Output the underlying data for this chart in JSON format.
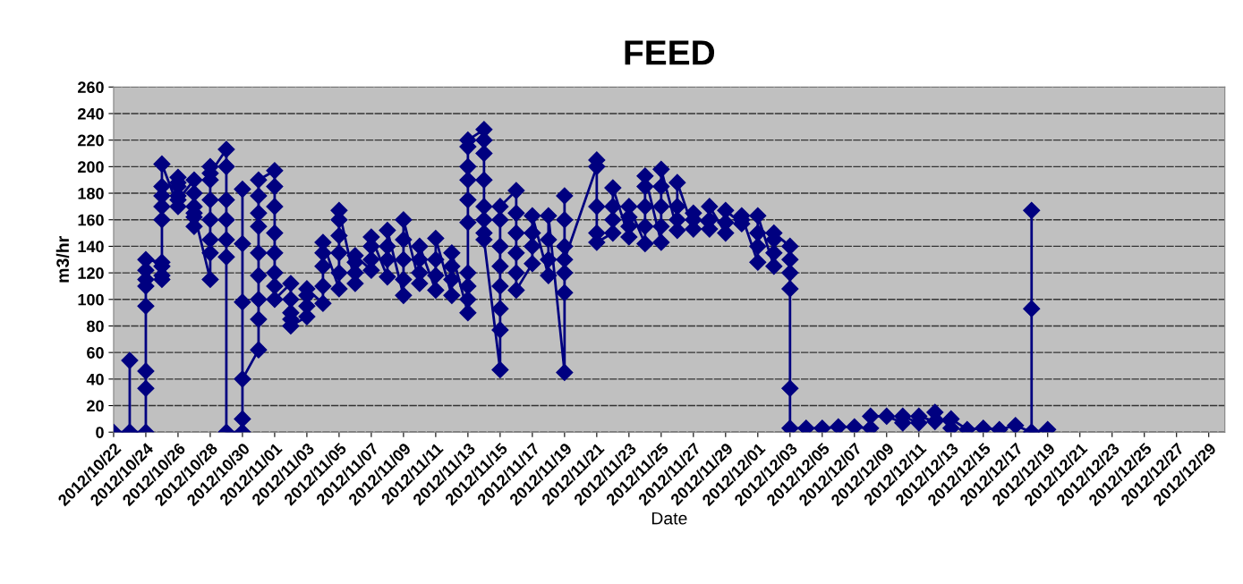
{
  "chart_data": {
    "type": "line",
    "title": "FEED",
    "xlabel": "Date",
    "ylabel": "m3/hr",
    "xlim": [
      "2012-10-22",
      "2012-12-30"
    ],
    "xticks": [
      {
        "value": "2012-10-22",
        "label": "2012/10/22"
      },
      {
        "value": "2012-10-24",
        "label": "2012/10/24"
      },
      {
        "value": "2012-10-26",
        "label": "2012/10/26"
      },
      {
        "value": "2012-10-28",
        "label": "2012/10/28"
      },
      {
        "value": "2012-10-30",
        "label": "2012/10/30"
      },
      {
        "value": "2012-11-01",
        "label": "2012/11/01"
      },
      {
        "value": "2012-11-03",
        "label": "2012/11/03"
      },
      {
        "value": "2012-11-05",
        "label": "2012/11/05"
      },
      {
        "value": "2012-11-07",
        "label": "2012/11/07"
      },
      {
        "value": "2012-11-09",
        "label": "2012/11/09"
      },
      {
        "value": "2012-11-11",
        "label": "2012/11/11"
      },
      {
        "value": "2012-11-13",
        "label": "2012/11/13"
      },
      {
        "value": "2012-11-15",
        "label": "2012/11/15"
      },
      {
        "value": "2012-11-17",
        "label": "2012/11/17"
      },
      {
        "value": "2012-11-19",
        "label": "2012/11/19"
      },
      {
        "value": "2012-11-21",
        "label": "2012/11/21"
      },
      {
        "value": "2012-11-23",
        "label": "2012/11/23"
      },
      {
        "value": "2012-11-25",
        "label": "2012/11/25"
      },
      {
        "value": "2012-11-27",
        "label": "2012/11/27"
      },
      {
        "value": "2012-11-29",
        "label": "2012/11/29"
      },
      {
        "value": "2012-12-01",
        "label": "2012/12/01"
      },
      {
        "value": "2012-12-03",
        "label": "2012/12/03"
      },
      {
        "value": "2012-12-05",
        "label": "2012/12/05"
      },
      {
        "value": "2012-12-07",
        "label": "2012/12/07"
      },
      {
        "value": "2012-12-09",
        "label": "2012/12/09"
      },
      {
        "value": "2012-12-11",
        "label": "2012/12/11"
      },
      {
        "value": "2012-12-13",
        "label": "2012/12/13"
      },
      {
        "value": "2012-12-15",
        "label": "2012/12/15"
      },
      {
        "value": "2012-12-17",
        "label": "2012/12/17"
      },
      {
        "value": "2012-12-19",
        "label": "2012/12/19"
      },
      {
        "value": "2012-12-21",
        "label": "2012/12/21"
      },
      {
        "value": "2012-12-23",
        "label": "2012/12/23"
      },
      {
        "value": "2012-12-25",
        "label": "2012/12/25"
      },
      {
        "value": "2012-12-27",
        "label": "2012/12/27"
      },
      {
        "value": "2012-12-29",
        "label": "2012/12/29"
      }
    ],
    "ylim": [
      0,
      260
    ],
    "yticks": [
      0,
      20,
      40,
      60,
      80,
      100,
      120,
      140,
      160,
      180,
      200,
      220,
      240,
      260
    ],
    "grid": "y",
    "marker": "diamond",
    "line_style": "solid",
    "series": [
      {
        "color": "#000080",
        "x": [
          "2012-10-22",
          "2012-10-23",
          "2012-10-23",
          "2012-10-23",
          "2012-10-24",
          "2012-10-24",
          "2012-10-24",
          "2012-10-24",
          "2012-10-24",
          "2012-10-24",
          "2012-10-24",
          "2012-10-24",
          "2012-10-25",
          "2012-10-25",
          "2012-10-25",
          "2012-10-25",
          "2012-10-25",
          "2012-10-25",
          "2012-10-25",
          "2012-10-25",
          "2012-10-25",
          "2012-10-26",
          "2012-10-26",
          "2012-10-26",
          "2012-10-26",
          "2012-10-26",
          "2012-10-26",
          "2012-10-27",
          "2012-10-27",
          "2012-10-27",
          "2012-10-27",
          "2012-10-27",
          "2012-10-27",
          "2012-10-28",
          "2012-10-28",
          "2012-10-28",
          "2012-10-28",
          "2012-10-28",
          "2012-10-28",
          "2012-10-28",
          "2012-10-28",
          "2012-10-29",
          "2012-10-29",
          "2012-10-29",
          "2012-10-29",
          "2012-10-29",
          "2012-10-29",
          "2012-10-29",
          "2012-10-30",
          "2012-10-30",
          "2012-10-30",
          "2012-10-30",
          "2012-10-30",
          "2012-10-30",
          "2012-10-31",
          "2012-10-31",
          "2012-10-31",
          "2012-10-31",
          "2012-10-31",
          "2012-10-31",
          "2012-10-31",
          "2012-10-31",
          "2012-10-31",
          "2012-11-01",
          "2012-11-01",
          "2012-11-01",
          "2012-11-01",
          "2012-11-01",
          "2012-11-01",
          "2012-11-01",
          "2012-11-01",
          "2012-11-02",
          "2012-11-02",
          "2012-11-02",
          "2012-11-02",
          "2012-11-02",
          "2012-11-03",
          "2012-11-03",
          "2012-11-03",
          "2012-11-03",
          "2012-11-04",
          "2012-11-04",
          "2012-11-04",
          "2012-11-04",
          "2012-11-04",
          "2012-11-05",
          "2012-11-05",
          "2012-11-05",
          "2012-11-05",
          "2012-11-05",
          "2012-11-05",
          "2012-11-06",
          "2012-11-06",
          "2012-11-06",
          "2012-11-06",
          "2012-11-07",
          "2012-11-07",
          "2012-11-07",
          "2012-11-07",
          "2012-11-08",
          "2012-11-08",
          "2012-11-08",
          "2012-11-08",
          "2012-11-09",
          "2012-11-09",
          "2012-11-09",
          "2012-11-09",
          "2012-11-09",
          "2012-11-10",
          "2012-11-10",
          "2012-11-10",
          "2012-11-10",
          "2012-11-11",
          "2012-11-11",
          "2012-11-11",
          "2012-11-11",
          "2012-11-12",
          "2012-11-12",
          "2012-11-12",
          "2012-11-12",
          "2012-11-13",
          "2012-11-13",
          "2012-11-13",
          "2012-11-13",
          "2012-11-13",
          "2012-11-13",
          "2012-11-13",
          "2012-11-13",
          "2012-11-13",
          "2012-11-13",
          "2012-11-14",
          "2012-11-14",
          "2012-11-14",
          "2012-11-14",
          "2012-11-14",
          "2012-11-14",
          "2012-11-14",
          "2012-11-14",
          "2012-11-15",
          "2012-11-15",
          "2012-11-15",
          "2012-11-15",
          "2012-11-15",
          "2012-11-15",
          "2012-11-15",
          "2012-11-15",
          "2012-11-16",
          "2012-11-16",
          "2012-11-16",
          "2012-11-16",
          "2012-11-16",
          "2012-11-16",
          "2012-11-17",
          "2012-11-17",
          "2012-11-17",
          "2012-11-17",
          "2012-11-18",
          "2012-11-18",
          "2012-11-18",
          "2012-11-18",
          "2012-11-19",
          "2012-11-19",
          "2012-11-19",
          "2012-11-19",
          "2012-11-19",
          "2012-11-19",
          "2012-11-19",
          "2012-11-21",
          "2012-11-21",
          "2012-11-21",
          "2012-11-21",
          "2012-11-21",
          "2012-11-22",
          "2012-11-22",
          "2012-11-22",
          "2012-11-22",
          "2012-11-23",
          "2012-11-23",
          "2012-11-23",
          "2012-11-23",
          "2012-11-24",
          "2012-11-24",
          "2012-11-24",
          "2012-11-24",
          "2012-11-24",
          "2012-11-25",
          "2012-11-25",
          "2012-11-25",
          "2012-11-25",
          "2012-11-25",
          "2012-11-26",
          "2012-11-26",
          "2012-11-26",
          "2012-11-26",
          "2012-11-27",
          "2012-11-27",
          "2012-11-27",
          "2012-11-28",
          "2012-11-28",
          "2012-11-28",
          "2012-11-29",
          "2012-11-29",
          "2012-11-29",
          "2012-11-30",
          "2012-11-30",
          "2012-11-30",
          "2012-12-01",
          "2012-12-01",
          "2012-12-01",
          "2012-12-01",
          "2012-12-02",
          "2012-12-02",
          "2012-12-02",
          "2012-12-02",
          "2012-12-03",
          "2012-12-03",
          "2012-12-03",
          "2012-12-03",
          "2012-12-03",
          "2012-12-03",
          "2012-12-04",
          "2012-12-05",
          "2012-12-06",
          "2012-12-07",
          "2012-12-08",
          "2012-12-08",
          "2012-12-09",
          "2012-12-10",
          "2012-12-10",
          "2012-12-11",
          "2012-12-11",
          "2012-12-12",
          "2012-12-12",
          "2012-12-13",
          "2012-12-13",
          "2012-12-14",
          "2012-12-15",
          "2012-12-16",
          "2012-12-17",
          "2012-12-18",
          "2012-12-18",
          "2012-12-18",
          "2012-12-18",
          "2012-12-19"
        ],
        "values": [
          0,
          0,
          54,
          0,
          0,
          33,
          46,
          95,
          110,
          115,
          122,
          130,
          128,
          118,
          115,
          125,
          160,
          170,
          178,
          185,
          202,
          170,
          178,
          185,
          192,
          188,
          175,
          190,
          180,
          170,
          162,
          155,
          165,
          115,
          135,
          145,
          160,
          175,
          190,
          200,
          195,
          213,
          200,
          175,
          160,
          145,
          132,
          0,
          0,
          10,
          142,
          183,
          98,
          40,
          62,
          85,
          100,
          118,
          135,
          155,
          165,
          178,
          190,
          197,
          185,
          170,
          150,
          135,
          120,
          110,
          100,
          112,
          100,
          90,
          85,
          80,
          87,
          95,
          103,
          108,
          97,
          110,
          125,
          135,
          143,
          108,
          120,
          135,
          148,
          160,
          167,
          112,
          120,
          128,
          133,
          122,
          130,
          140,
          147,
          117,
          130,
          140,
          152,
          103,
          115,
          130,
          145,
          160,
          112,
          120,
          130,
          140,
          107,
          118,
          130,
          146,
          103,
          115,
          125,
          135,
          90,
          100,
          110,
          120,
          158,
          175,
          190,
          200,
          215,
          220,
          228,
          220,
          210,
          190,
          170,
          160,
          150,
          145,
          47,
          77,
          93,
          110,
          125,
          140,
          160,
          170,
          182,
          165,
          150,
          135,
          120,
          107,
          127,
          140,
          150,
          163,
          118,
          130,
          145,
          163,
          45,
          105,
          120,
          140,
          160,
          178,
          130,
          200,
          205,
          170,
          150,
          143,
          150,
          160,
          170,
          184,
          147,
          155,
          162,
          170,
          142,
          155,
          170,
          185,
          193,
          143,
          155,
          170,
          185,
          198,
          152,
          160,
          170,
          188,
          153,
          160,
          165,
          153,
          160,
          170,
          150,
          158,
          167,
          157,
          160,
          163,
          128,
          140,
          150,
          163,
          125,
          135,
          145,
          150,
          140,
          130,
          120,
          108,
          33,
          3,
          3,
          3,
          4,
          4,
          3,
          12,
          12,
          7,
          12,
          7,
          12,
          8,
          15,
          3,
          10,
          2,
          3,
          2,
          5,
          0,
          167,
          93,
          0,
          2
        ]
      }
    ]
  }
}
